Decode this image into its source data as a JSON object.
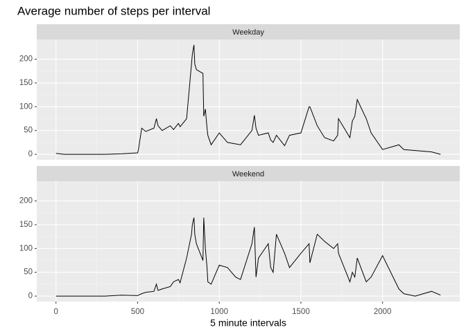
{
  "chart_data": {
    "type": "line",
    "title": "Average number of steps per interval",
    "xlabel": "5 minute intervals",
    "xlim": [
      -117.75,
      2472.75
    ],
    "xticks": [
      0,
      500,
      1000,
      1500,
      2000
    ],
    "ylim": [
      -11.5,
      241.5
    ],
    "yticks": [
      0,
      50,
      100,
      150,
      200
    ],
    "grid": true,
    "facet": true,
    "x": [
      0,
      50,
      100,
      200,
      300,
      400,
      500,
      505,
      525,
      550,
      600,
      615,
      625,
      650,
      700,
      720,
      750,
      760,
      800,
      830,
      835,
      845,
      850,
      860,
      900,
      905,
      915,
      925,
      930,
      950,
      1000,
      1050,
      1100,
      1130,
      1200,
      1215,
      1225,
      1240,
      1300,
      1315,
      1330,
      1350,
      1400,
      1430,
      1500,
      1550,
      1555,
      1600,
      1645,
      1700,
      1725,
      1730,
      1800,
      1815,
      1830,
      1845,
      1900,
      1930,
      2000,
      2100,
      2130,
      2200,
      2300,
      2355
    ],
    "series": [
      {
        "name": "Weekday",
        "color": "#000000",
        "values": [
          2,
          0,
          0,
          0,
          0,
          1,
          3,
          10,
          55,
          48,
          55,
          75,
          60,
          50,
          60,
          52,
          65,
          58,
          75,
          190,
          210,
          230,
          190,
          178,
          170,
          80,
          95,
          55,
          40,
          20,
          45,
          25,
          22,
          20,
          50,
          82,
          55,
          40,
          45,
          30,
          25,
          40,
          18,
          40,
          45,
          100,
          100,
          60,
          35,
          28,
          40,
          75,
          35,
          70,
          80,
          115,
          75,
          45,
          10,
          20,
          10,
          8,
          5,
          0
        ]
      },
      {
        "name": "Weekend",
        "color": "#000000",
        "values": [
          0,
          0,
          0,
          0,
          0,
          2,
          1,
          2,
          5,
          8,
          10,
          25,
          12,
          15,
          20,
          30,
          35,
          28,
          80,
          130,
          150,
          165,
          130,
          110,
          75,
          165,
          100,
          60,
          30,
          25,
          65,
          60,
          40,
          35,
          110,
          145,
          40,
          80,
          110,
          60,
          50,
          130,
          90,
          60,
          90,
          110,
          70,
          130,
          115,
          100,
          110,
          90,
          30,
          50,
          40,
          80,
          30,
          40,
          85,
          15,
          5,
          0,
          10,
          2
        ]
      }
    ]
  }
}
